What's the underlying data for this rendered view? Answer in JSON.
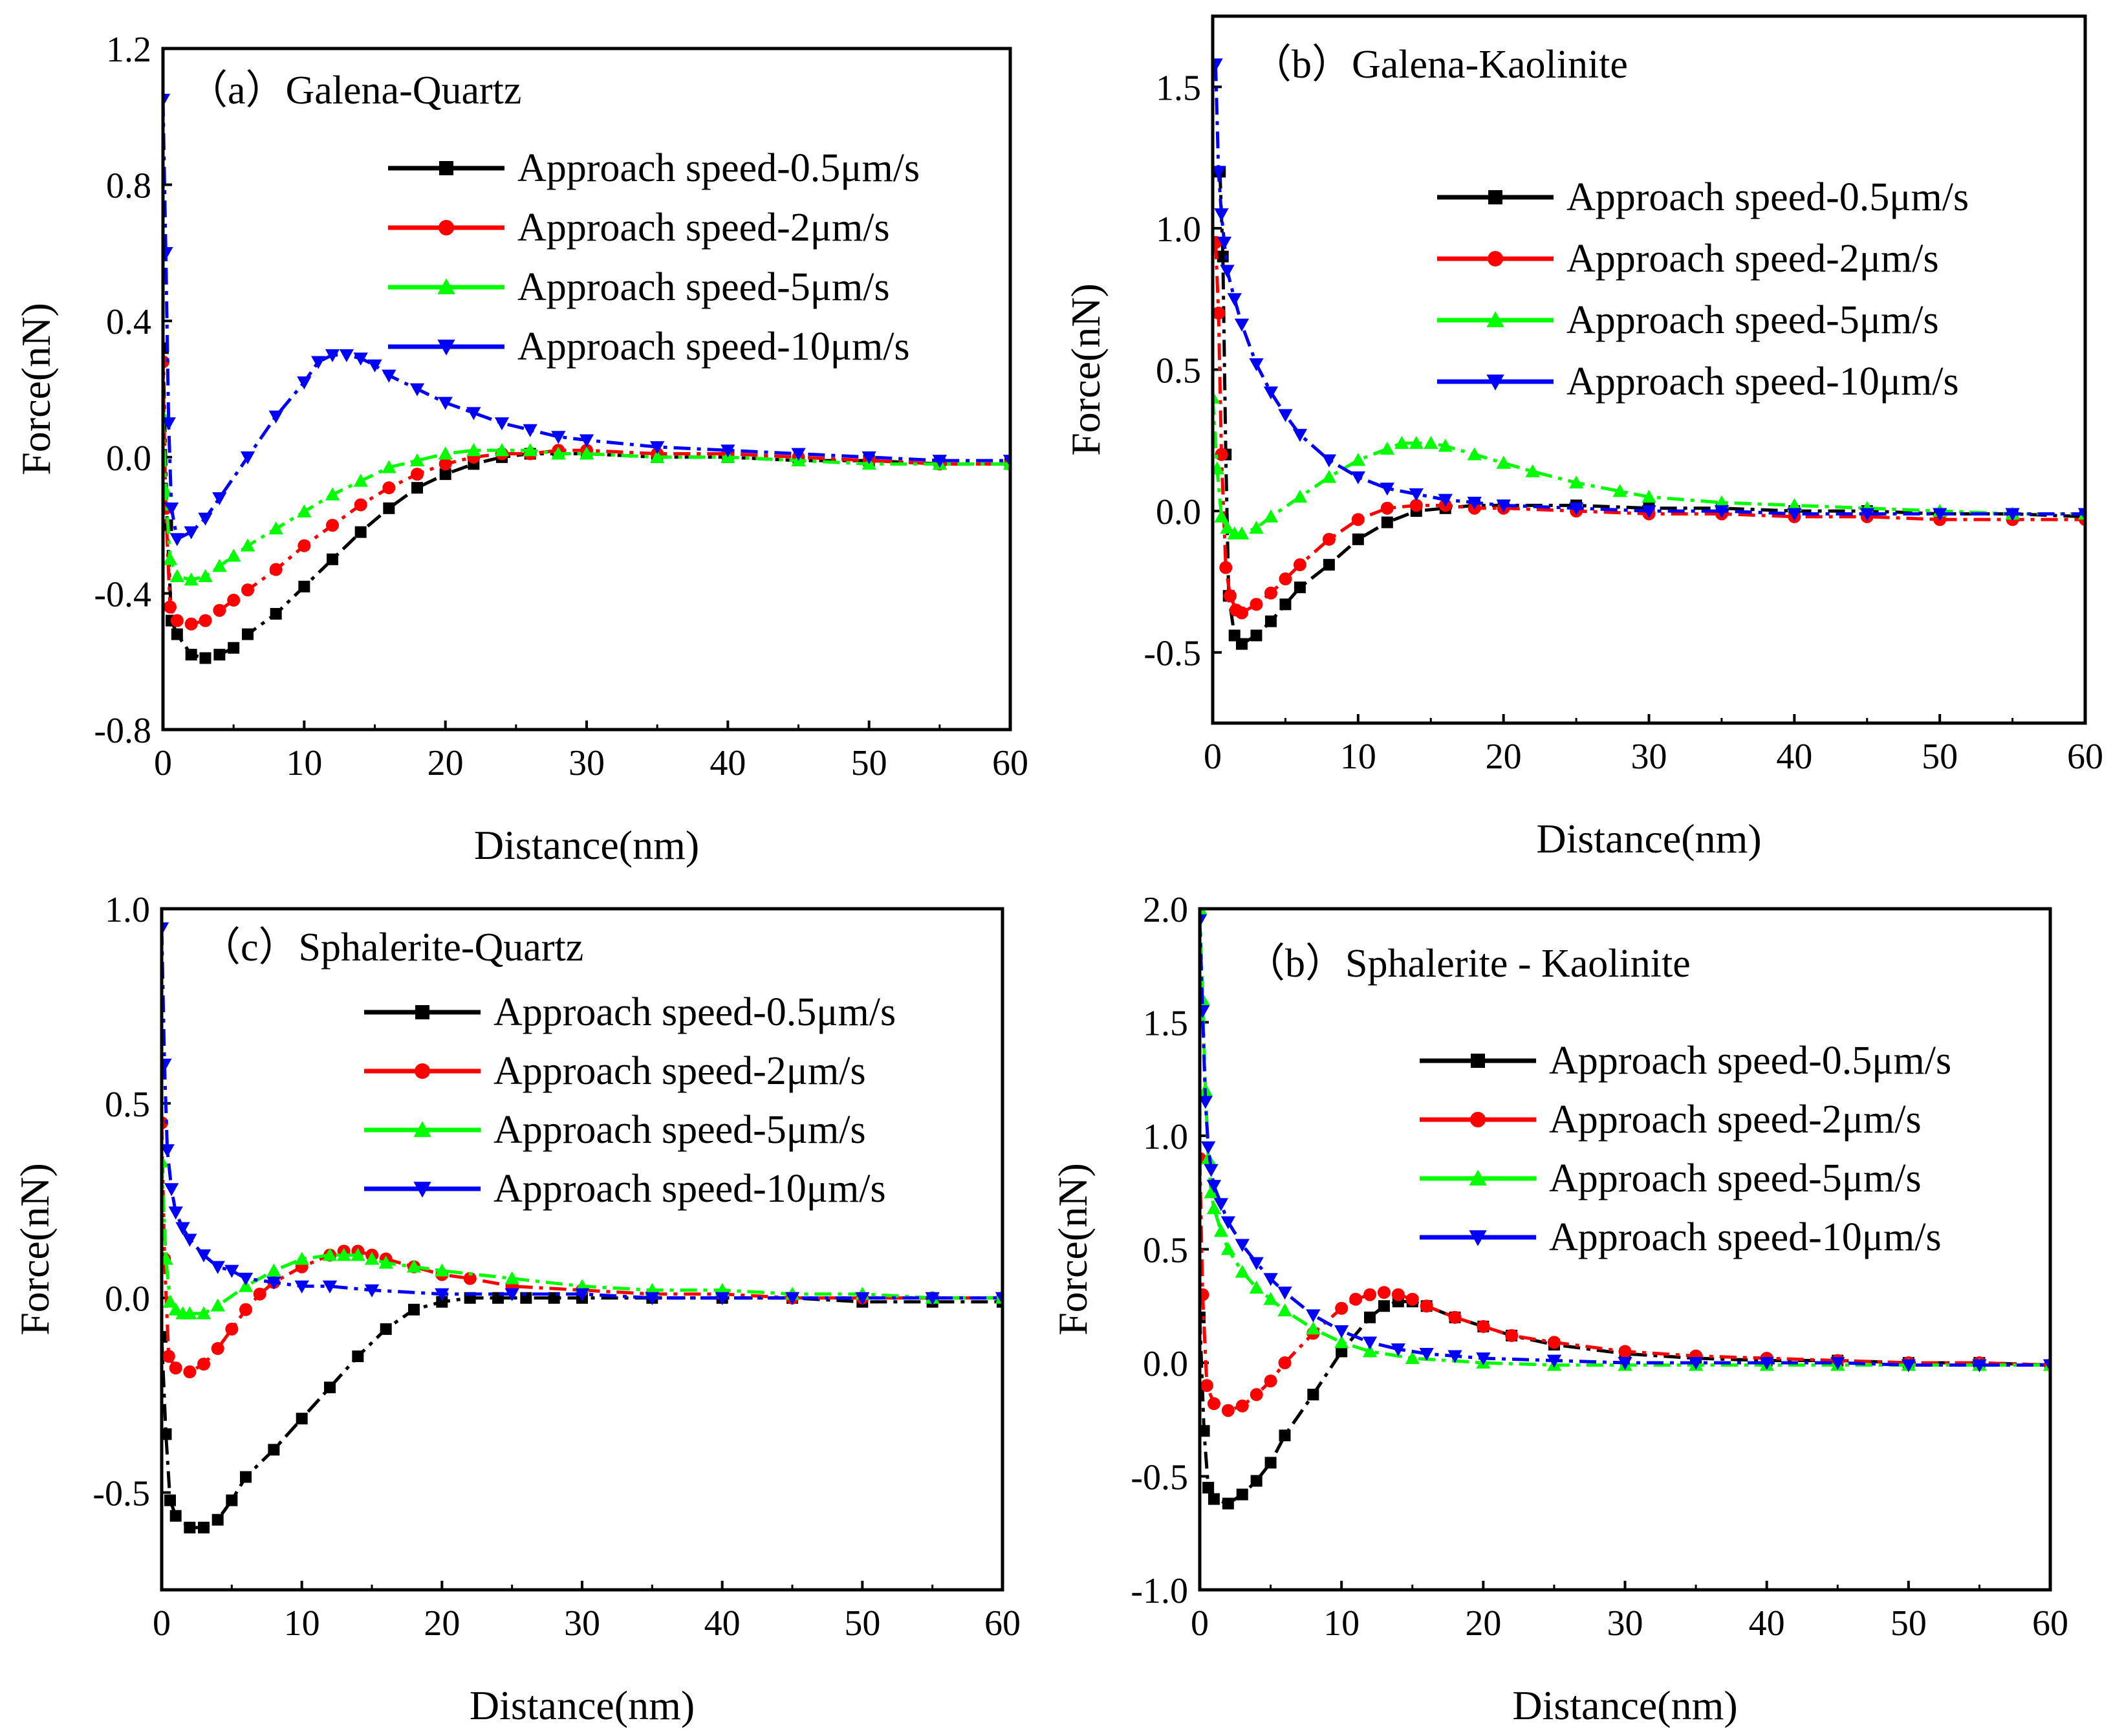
{
  "chart_data": [
    {
      "type": "line",
      "title": "（a）Galena-Quartz",
      "xlabel": "Distance(nm)",
      "ylabel": "Force(nN)",
      "xlim": [
        0,
        60
      ],
      "ylim": [
        -0.8,
        1.2
      ],
      "xticks": [
        "0",
        "10",
        "20",
        "30",
        "40",
        "50",
        "60"
      ],
      "yticks": [
        "-0.8",
        "-0.4",
        "0.0",
        "0.4",
        "0.8",
        "1.2"
      ],
      "legend_position": "top-right",
      "grid": false,
      "series": [
        {
          "name": "Approach speed-0.5μm/s",
          "color": "#000000",
          "marker": "square",
          "x": [
            0,
            0.3,
            0.6,
            1,
            2,
            3,
            4,
            5,
            6,
            8,
            10,
            12,
            14,
            16,
            18,
            20,
            22,
            24,
            26,
            28,
            30,
            35,
            40,
            45,
            50,
            55,
            60
          ],
          "y": [
            0.32,
            -0.2,
            -0.48,
            -0.52,
            -0.58,
            -0.59,
            -0.58,
            -0.56,
            -0.52,
            -0.46,
            -0.38,
            -0.3,
            -0.22,
            -0.15,
            -0.09,
            -0.05,
            -0.02,
            0,
            0.01,
            0.01,
            0.01,
            0.0,
            0.0,
            -0.01,
            -0.01,
            -0.02,
            -0.02
          ]
        },
        {
          "name": "Approach speed-2μm/s",
          "color": "#ff0000",
          "marker": "circle",
          "x": [
            0,
            0.2,
            0.5,
            1,
            2,
            3,
            4,
            5,
            6,
            8,
            10,
            12,
            14,
            16,
            18,
            20,
            22,
            24,
            26,
            28,
            30,
            35,
            40,
            45,
            50,
            55,
            60
          ],
          "y": [
            0.28,
            -0.15,
            -0.44,
            -0.48,
            -0.49,
            -0.48,
            -0.45,
            -0.42,
            -0.39,
            -0.33,
            -0.26,
            -0.2,
            -0.14,
            -0.09,
            -0.05,
            -0.02,
            0,
            0.01,
            0.01,
            0.02,
            0.02,
            0.01,
            0.01,
            0.0,
            -0.01,
            -0.02,
            -0.02
          ]
        },
        {
          "name": "Approach speed-5μm/s",
          "color": "#00ff00",
          "marker": "triangle-up",
          "x": [
            0,
            0.2,
            0.5,
            1,
            2,
            3,
            4,
            5,
            6,
            8,
            10,
            12,
            14,
            16,
            18,
            20,
            22,
            24,
            26,
            28,
            30,
            35,
            40,
            45,
            50,
            55,
            60
          ],
          "y": [
            0.12,
            -0.1,
            -0.3,
            -0.35,
            -0.36,
            -0.35,
            -0.32,
            -0.29,
            -0.26,
            -0.21,
            -0.16,
            -0.11,
            -0.07,
            -0.03,
            -0.01,
            0.01,
            0.02,
            0.02,
            0.02,
            0.01,
            0.01,
            0.0,
            0.0,
            -0.01,
            -0.02,
            -0.02,
            -0.02
          ]
        },
        {
          "name": "Approach speed-10μm/s",
          "color": "#0000ff",
          "marker": "triangle-down",
          "x": [
            0,
            0.2,
            0.4,
            0.6,
            1,
            2,
            3,
            4,
            6,
            8,
            10,
            11,
            12,
            13,
            14,
            15,
            16,
            18,
            20,
            22,
            24,
            26,
            28,
            30,
            35,
            40,
            45,
            50,
            55,
            60
          ],
          "y": [
            1.05,
            0.6,
            0.1,
            -0.15,
            -0.24,
            -0.22,
            -0.18,
            -0.12,
            0.0,
            0.12,
            0.22,
            0.28,
            0.3,
            0.3,
            0.29,
            0.27,
            0.24,
            0.2,
            0.16,
            0.13,
            0.1,
            0.08,
            0.06,
            0.05,
            0.03,
            0.02,
            0.01,
            0.0,
            -0.01,
            -0.01
          ]
        }
      ]
    },
    {
      "type": "line",
      "title": "（b）Galena-Kaolinite",
      "xlabel": "Distance(nm)",
      "ylabel": "Force(nN)",
      "xlim": [
        0,
        60
      ],
      "ylim": [
        -0.75,
        1.75
      ],
      "xticks": [
        "0",
        "10",
        "20",
        "30",
        "40",
        "50",
        "60"
      ],
      "yticks": [
        "-0.5",
        "0.0",
        "0.5",
        "1.0",
        "1.5"
      ],
      "legend_position": "top-right",
      "grid": false,
      "series": [
        {
          "name": "Approach speed-0.5μm/s",
          "color": "#000000",
          "marker": "square",
          "x": [
            0.5,
            0.7,
            0.9,
            1.1,
            1.5,
            2,
            3,
            4,
            5,
            6,
            8,
            10,
            12,
            14,
            16,
            18,
            20,
            25,
            30,
            35,
            40,
            45,
            50,
            55,
            60
          ],
          "y": [
            1.2,
            0.9,
            0.2,
            -0.3,
            -0.44,
            -0.47,
            -0.44,
            -0.39,
            -0.33,
            -0.27,
            -0.19,
            -0.1,
            -0.04,
            0.0,
            0.01,
            0.02,
            0.02,
            0.02,
            0.01,
            0.01,
            0.0,
            0.0,
            -0.01,
            -0.01,
            -0.02
          ]
        },
        {
          "name": "Approach speed-2μm/s",
          "color": "#ff0000",
          "marker": "circle",
          "x": [
            0.2,
            0.4,
            0.6,
            0.9,
            1.2,
            1.6,
            2,
            3,
            4,
            5,
            6,
            8,
            10,
            12,
            14,
            16,
            18,
            20,
            25,
            30,
            35,
            40,
            45,
            50,
            55,
            60
          ],
          "y": [
            0.95,
            0.7,
            0.2,
            -0.2,
            -0.3,
            -0.35,
            -0.36,
            -0.33,
            -0.29,
            -0.24,
            -0.19,
            -0.1,
            -0.03,
            0.01,
            0.02,
            0.02,
            0.01,
            0.01,
            0.0,
            -0.01,
            -0.01,
            -0.02,
            -0.02,
            -0.03,
            -0.03,
            -0.03
          ]
        },
        {
          "name": "Approach speed-5μm/s",
          "color": "#00ff00",
          "marker": "triangle-up",
          "x": [
            0,
            0.3,
            0.6,
            1,
            1.5,
            2,
            3,
            4,
            6,
            8,
            10,
            12,
            13,
            14,
            15,
            16,
            18,
            20,
            22,
            25,
            28,
            30,
            35,
            40,
            45,
            50,
            55,
            60
          ],
          "y": [
            0.4,
            0.15,
            -0.02,
            -0.06,
            -0.08,
            -0.08,
            -0.06,
            -0.02,
            0.05,
            0.12,
            0.18,
            0.22,
            0.24,
            0.24,
            0.24,
            0.23,
            0.2,
            0.17,
            0.14,
            0.1,
            0.07,
            0.05,
            0.03,
            0.02,
            0.01,
            0.0,
            -0.01,
            -0.01
          ]
        },
        {
          "name": "Approach speed-10μm/s",
          "color": "#0000ff",
          "marker": "triangle-down",
          "x": [
            0.2,
            0.4,
            0.6,
            0.8,
            1,
            1.5,
            2,
            3,
            4,
            5,
            6,
            8,
            10,
            12,
            14,
            16,
            18,
            20,
            25,
            30,
            35,
            40,
            45,
            50,
            55,
            60
          ],
          "y": [
            1.58,
            1.2,
            1.05,
            0.95,
            0.85,
            0.75,
            0.66,
            0.52,
            0.42,
            0.34,
            0.27,
            0.18,
            0.12,
            0.08,
            0.06,
            0.04,
            0.03,
            0.02,
            0.01,
            0.0,
            0.0,
            -0.01,
            -0.01,
            -0.01,
            -0.01,
            -0.01
          ]
        }
      ]
    },
    {
      "type": "line",
      "title": "（c）Sphalerite-Quartz",
      "xlabel": "Distance(nm)",
      "ylabel": "Force(nN)",
      "xlim": [
        0,
        60
      ],
      "ylim": [
        -0.75,
        1.0
      ],
      "xticks": [
        "0",
        "10",
        "20",
        "30",
        "40",
        "50",
        "60"
      ],
      "yticks": [
        "-0.5",
        "0.0",
        "0.5",
        "1.0"
      ],
      "legend_position": "top-right",
      "grid": false,
      "series": [
        {
          "name": "Approach speed-0.5μm/s",
          "color": "#000000",
          "marker": "square",
          "x": [
            0,
            0.3,
            0.6,
            1,
            2,
            3,
            4,
            5,
            6,
            8,
            10,
            12,
            14,
            16,
            18,
            20,
            22,
            24,
            26,
            28,
            30,
            35,
            40,
            45,
            50,
            55,
            60
          ],
          "y": [
            -0.1,
            -0.35,
            -0.52,
            -0.56,
            -0.59,
            -0.59,
            -0.57,
            -0.52,
            -0.46,
            -0.39,
            -0.31,
            -0.23,
            -0.15,
            -0.08,
            -0.03,
            -0.01,
            0.0,
            0.0,
            0.0,
            0.0,
            0.0,
            0.0,
            0.0,
            0.0,
            -0.01,
            -0.01,
            -0.01
          ]
        },
        {
          "name": "Approach speed-2μm/s",
          "color": "#ff0000",
          "marker": "circle",
          "x": [
            0,
            0.2,
            0.5,
            1,
            2,
            3,
            4,
            5,
            6,
            7,
            8,
            10,
            12,
            13,
            14,
            15,
            16,
            18,
            20,
            22,
            25,
            30,
            35,
            40,
            45,
            50,
            55,
            60
          ],
          "y": [
            0.45,
            0.1,
            -0.15,
            -0.18,
            -0.19,
            -0.17,
            -0.13,
            -0.08,
            -0.03,
            0.01,
            0.04,
            0.08,
            0.11,
            0.12,
            0.12,
            0.11,
            0.1,
            0.08,
            0.06,
            0.05,
            0.03,
            0.02,
            0.01,
            0.01,
            0.0,
            0.0,
            0.0,
            0.0
          ]
        },
        {
          "name": "Approach speed-5μm/s",
          "color": "#00ff00",
          "marker": "triangle-up",
          "x": [
            0,
            0.3,
            0.6,
            1,
            1.5,
            2,
            3,
            4,
            6,
            8,
            10,
            12,
            13,
            14,
            15,
            16,
            18,
            20,
            25,
            30,
            35,
            40,
            45,
            50,
            55,
            60
          ],
          "y": [
            0.35,
            0.1,
            -0.01,
            -0.03,
            -0.04,
            -0.04,
            -0.04,
            -0.02,
            0.03,
            0.07,
            0.1,
            0.11,
            0.11,
            0.11,
            0.1,
            0.09,
            0.08,
            0.07,
            0.05,
            0.03,
            0.02,
            0.02,
            0.01,
            0.01,
            0.0,
            0.0
          ]
        },
        {
          "name": "Approach speed-10μm/s",
          "color": "#0000ff",
          "marker": "triangle-down",
          "x": [
            0,
            0.2,
            0.4,
            0.7,
            1,
            1.5,
            2,
            3,
            4,
            5,
            6,
            8,
            10,
            12,
            15,
            20,
            25,
            30,
            35,
            40,
            45,
            50,
            55,
            60
          ],
          "y": [
            0.95,
            0.6,
            0.38,
            0.28,
            0.22,
            0.18,
            0.15,
            0.11,
            0.08,
            0.07,
            0.05,
            0.04,
            0.03,
            0.03,
            0.02,
            0.01,
            0.01,
            0.01,
            0.0,
            0.0,
            0.0,
            0.0,
            0.0,
            0.0
          ]
        }
      ]
    },
    {
      "type": "line",
      "title": "（b）Sphalerite - Kaolinite",
      "xlabel": "Distance(nm)",
      "ylabel": "Force(nN)",
      "xlim": [
        0,
        60
      ],
      "ylim": [
        -1.0,
        2.0
      ],
      "xticks": [
        "0",
        "10",
        "20",
        "30",
        "40",
        "50",
        "60"
      ],
      "yticks": [
        "-1.0",
        "-0.5",
        "0.0",
        "0.5",
        "1.0",
        "1.5",
        "2.0"
      ],
      "legend_position": "top-right",
      "grid": false,
      "series": [
        {
          "name": "Approach speed-0.5μm/s",
          "color": "#000000",
          "marker": "square",
          "x": [
            0,
            0.3,
            0.6,
            1,
            2,
            3,
            4,
            5,
            6,
            8,
            10,
            12,
            13,
            14,
            15,
            16,
            18,
            20,
            22,
            25,
            30,
            35,
            40,
            45,
            50,
            55,
            60
          ],
          "y": [
            0.2,
            -0.3,
            -0.55,
            -0.6,
            -0.62,
            -0.58,
            -0.52,
            -0.44,
            -0.32,
            -0.14,
            0.05,
            0.2,
            0.25,
            0.27,
            0.27,
            0.25,
            0.2,
            0.16,
            0.12,
            0.08,
            0.04,
            0.02,
            0.01,
            0.01,
            0.0,
            0.0,
            -0.01
          ]
        },
        {
          "name": "Approach speed-2μm/s",
          "color": "#ff0000",
          "marker": "circle",
          "x": [
            0,
            0.2,
            0.5,
            1,
            2,
            3,
            4,
            5,
            6,
            8,
            10,
            11,
            12,
            13,
            14,
            15,
            16,
            18,
            20,
            22,
            25,
            30,
            35,
            40,
            45,
            50,
            55,
            60
          ],
          "y": [
            0.9,
            0.3,
            -0.1,
            -0.18,
            -0.21,
            -0.19,
            -0.14,
            -0.08,
            0.0,
            0.13,
            0.24,
            0.28,
            0.3,
            0.31,
            0.3,
            0.28,
            0.25,
            0.2,
            0.16,
            0.12,
            0.09,
            0.05,
            0.03,
            0.02,
            0.01,
            0.0,
            0.0,
            -0.01
          ]
        },
        {
          "name": "Approach speed-5μm/s",
          "color": "#00ff00",
          "marker": "triangle-up",
          "x": [
            0,
            0.2,
            0.4,
            0.6,
            0.8,
            1,
            1.5,
            2,
            3,
            4,
            5,
            6,
            8,
            10,
            12,
            15,
            20,
            25,
            30,
            35,
            40,
            45,
            50,
            55,
            60
          ],
          "y": [
            2.0,
            1.6,
            1.2,
            0.9,
            0.75,
            0.68,
            0.58,
            0.5,
            0.4,
            0.33,
            0.28,
            0.23,
            0.15,
            0.09,
            0.05,
            0.02,
            0.0,
            -0.01,
            -0.01,
            -0.01,
            -0.01,
            -0.01,
            -0.01,
            -0.01,
            -0.01
          ]
        },
        {
          "name": "Approach speed-10μm/s",
          "color": "#0000ff",
          "marker": "triangle-down",
          "x": [
            0,
            0.2,
            0.4,
            0.6,
            0.8,
            1,
            1.5,
            2,
            3,
            4,
            5,
            6,
            8,
            10,
            12,
            14,
            16,
            18,
            20,
            25,
            30,
            35,
            40,
            45,
            50,
            55,
            60
          ],
          "y": [
            1.95,
            1.55,
            1.15,
            0.95,
            0.85,
            0.78,
            0.7,
            0.62,
            0.52,
            0.44,
            0.37,
            0.31,
            0.21,
            0.14,
            0.09,
            0.06,
            0.04,
            0.03,
            0.02,
            0.01,
            0.0,
            0.0,
            0.0,
            0.0,
            -0.01,
            -0.01,
            -0.01
          ]
        }
      ]
    }
  ]
}
